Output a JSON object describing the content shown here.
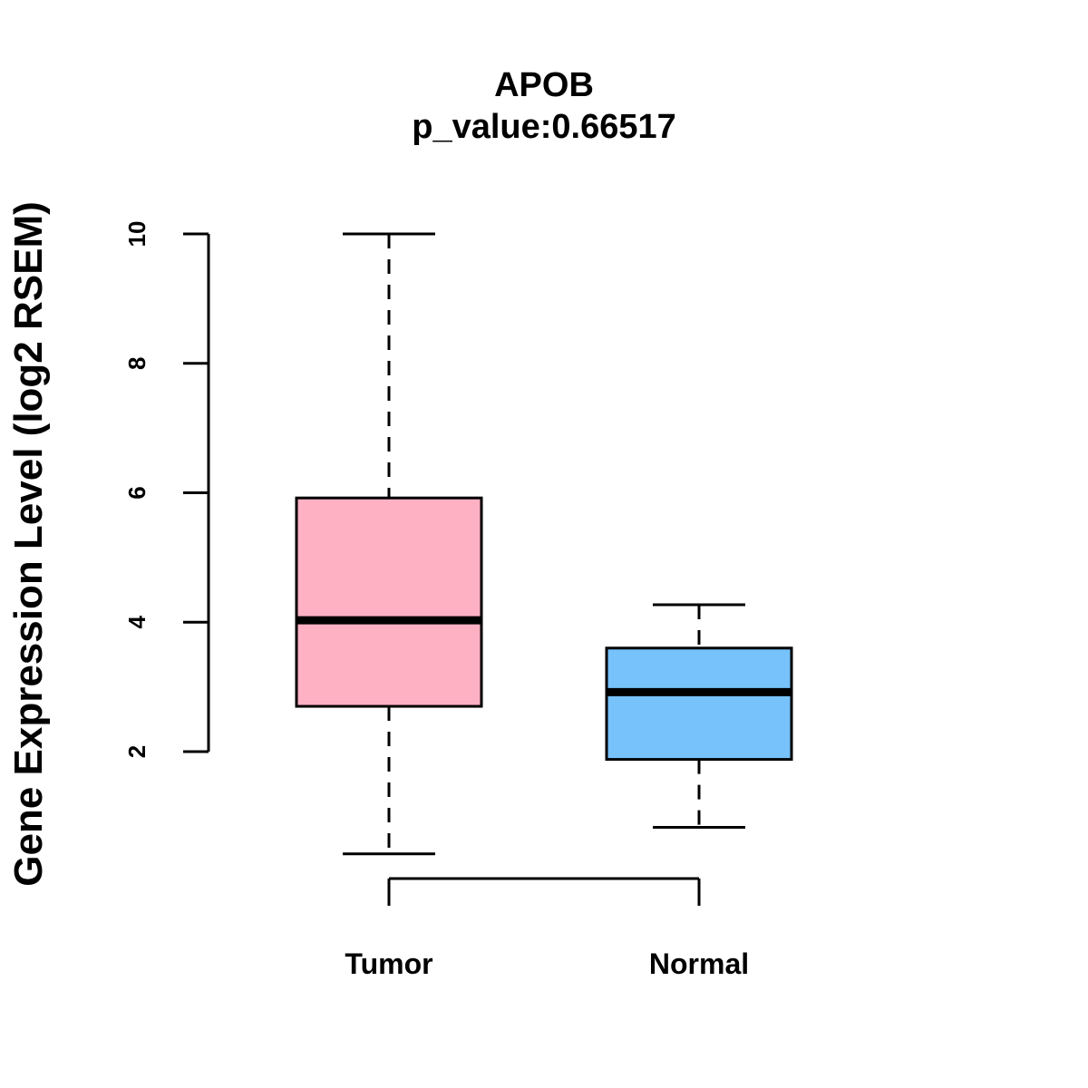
{
  "chart_data": {
    "type": "boxplot",
    "title": "APOB",
    "subtitle": "p_value:0.66517",
    "xlabel": "",
    "ylabel": "Gene Expression Level (log2 RSEM)",
    "yticks": [
      2,
      4,
      6,
      8,
      10
    ],
    "categories": [
      "Tumor",
      "Normal"
    ],
    "series": [
      {
        "name": "Tumor",
        "whisker_low": 0.42,
        "q1": 2.7,
        "median": 4.03,
        "q3": 5.92,
        "whisker_high": 10.0,
        "color": "#FFB1C4"
      },
      {
        "name": "Normal",
        "whisker_low": 0.83,
        "q1": 1.88,
        "median": 2.92,
        "q3": 3.6,
        "whisker_high": 4.27,
        "color": "#77C2FA"
      }
    ],
    "grid": false,
    "legend": "none"
  }
}
